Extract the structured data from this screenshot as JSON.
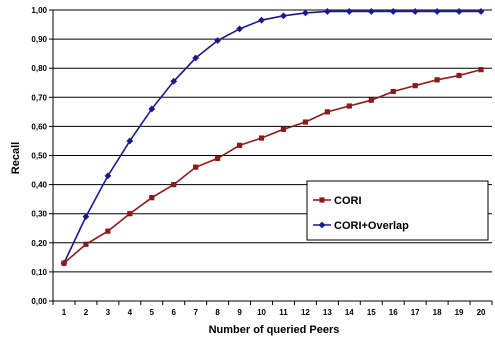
{
  "chart_data": {
    "type": "line",
    "title": "",
    "xlabel": "Number of queried Peers",
    "ylabel": "Recall",
    "x": [
      1,
      2,
      3,
      4,
      5,
      6,
      7,
      8,
      9,
      10,
      11,
      12,
      13,
      14,
      15,
      16,
      17,
      18,
      19,
      20
    ],
    "x_tick_labels": [
      "1",
      "2",
      "3",
      "4",
      "5",
      "6",
      "7",
      "8",
      "9",
      "10",
      "11",
      "12",
      "13",
      "14",
      "15",
      "16",
      "17",
      "18",
      "19",
      "20"
    ],
    "ylim": [
      0,
      1
    ],
    "y_tick_values": [
      0,
      0.1,
      0.2,
      0.3,
      0.4,
      0.5,
      0.6,
      0.7,
      0.8,
      0.9,
      1.0
    ],
    "y_tick_labels": [
      "0,00",
      "0,10",
      "0,20",
      "0,30",
      "0,40",
      "0,50",
      "0,60",
      "0,70",
      "0,80",
      "0,90",
      "1,00"
    ],
    "grid": true,
    "legend_position": "right-middle",
    "series": [
      {
        "name": "CORI",
        "color": "#8b1a1a",
        "marker": "square",
        "values": [
          0.13,
          0.195,
          0.24,
          0.3,
          0.355,
          0.4,
          0.46,
          0.49,
          0.535,
          0.56,
          0.59,
          0.615,
          0.65,
          0.67,
          0.69,
          0.72,
          0.74,
          0.76,
          0.775,
          0.795
        ]
      },
      {
        "name": "CORI+Overlap",
        "color": "#1a1a8c",
        "marker": "diamond",
        "values": [
          0.13,
          0.29,
          0.43,
          0.55,
          0.66,
          0.755,
          0.835,
          0.895,
          0.935,
          0.965,
          0.98,
          0.99,
          0.995,
          0.995,
          0.995,
          0.995,
          0.995,
          0.995,
          0.995,
          0.995
        ]
      }
    ]
  }
}
